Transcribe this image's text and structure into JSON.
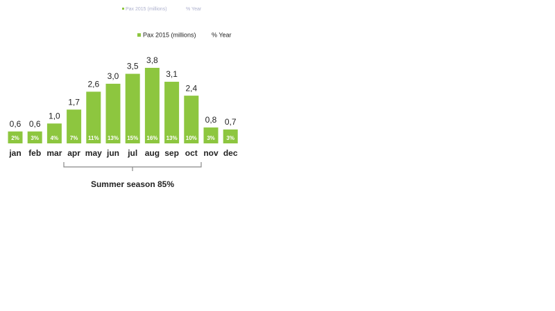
{
  "chart_data": {
    "type": "bar",
    "categories": [
      "jan",
      "feb",
      "mar",
      "apr",
      "may",
      "jun",
      "jul",
      "aug",
      "sep",
      "oct",
      "nov",
      "dec"
    ],
    "series": [
      {
        "name": "Pax 2015 (millions)",
        "color": "#8dc63f",
        "values": [
          0.6,
          0.6,
          1.0,
          1.7,
          2.6,
          3.0,
          3.5,
          3.8,
          3.1,
          2.4,
          0.8,
          0.7
        ],
        "value_labels": [
          "0,6",
          "0,6",
          "1,0",
          "1,7",
          "2,6",
          "3,0",
          "3,5",
          "3,8",
          "3,1",
          "2,4",
          "0,8",
          "0,7"
        ]
      },
      {
        "name": "% Year",
        "values": [
          2,
          3,
          4,
          7,
          11,
          13,
          15,
          16,
          13,
          10,
          3,
          3
        ],
        "value_labels": [
          "2%",
          "3%",
          "4%",
          "7%",
          "11%",
          "13%",
          "15%",
          "16%",
          "13%",
          "10%",
          "3%",
          "3%"
        ]
      }
    ],
    "annotation": "Summer season 85%"
  }
}
